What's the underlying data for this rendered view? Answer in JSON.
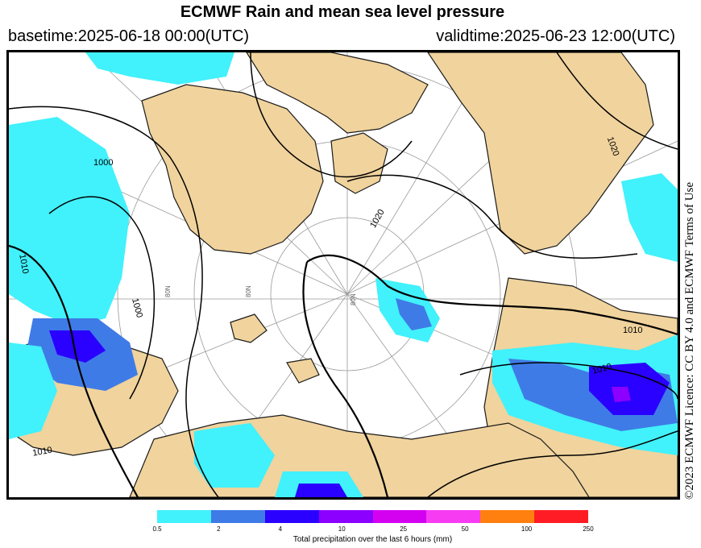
{
  "header": {
    "title": "ECMWF Rain and mean sea level pressure",
    "basetime": "basetime:2025-06-18 00:00(UTC)",
    "validtime": "validtime:2025-06-23 12:00(UTC)"
  },
  "licence": "©2023 ECMWF Licence: CC BY 4.0 and ECMWF Terms of Use",
  "map": {
    "isobar_labels": [
      "1000",
      "1010",
      "1000",
      "1020",
      "1020",
      "1010",
      "1010",
      "1010"
    ],
    "meridian_labels": [
      "80N",
      "80N",
      "80N"
    ],
    "colors": {
      "land": "#f0d39d",
      "sea": "#ffffff",
      "coast": "#1a1a1a",
      "isobar": "#000000",
      "graticule": "#9a9a9a"
    }
  },
  "legend": {
    "title": "Total precipitation over the last 6 hours (mm)",
    "ticks": [
      "0.5",
      "2",
      "4",
      "10",
      "25",
      "50",
      "100",
      "250"
    ],
    "colors": [
      "#41f1fb",
      "#3f7be6",
      "#2a00ff",
      "#8b00ff",
      "#d401f1",
      "#f63bf2",
      "#ff7f0f",
      "#ff1c24"
    ]
  }
}
